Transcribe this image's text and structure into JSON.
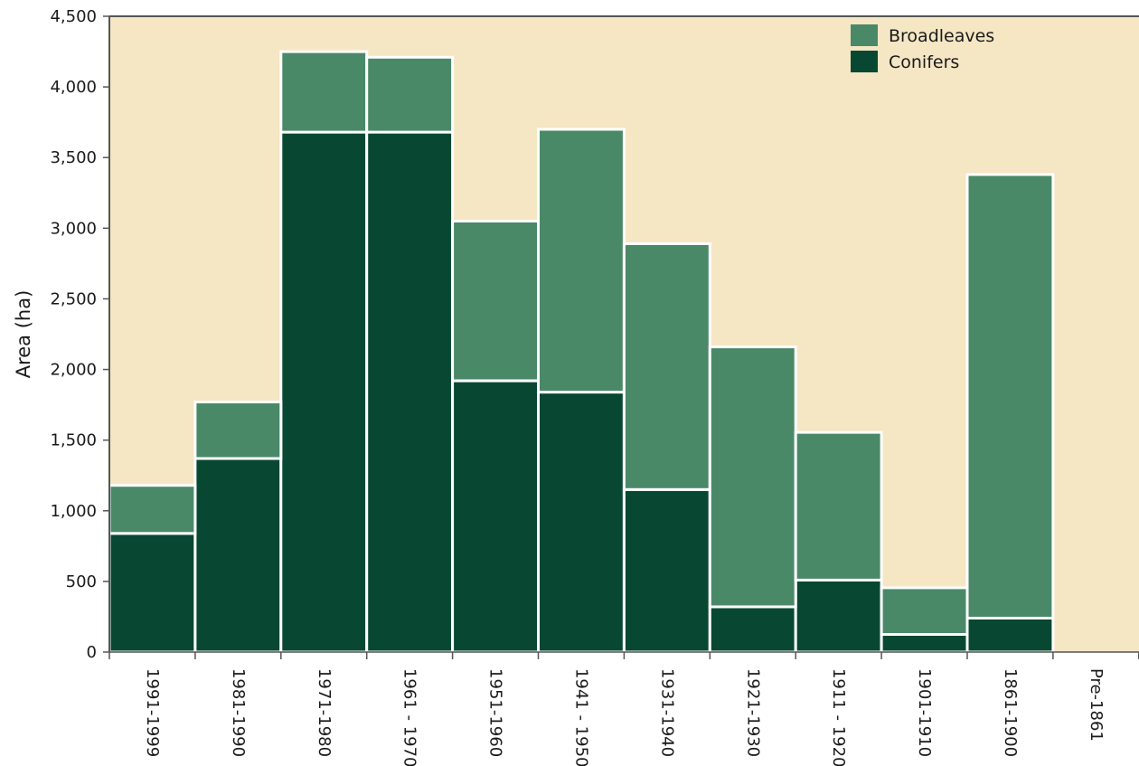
{
  "colors": {
    "plot_background": "#f5e6c4",
    "conifers": "#084832",
    "broadleaves": "#4a8968",
    "bar_border": "#ffffff",
    "axis": "#555555"
  },
  "chart_data": {
    "type": "bar",
    "stacked": true,
    "title": "",
    "xlabel": "",
    "ylabel": "Area (ha)",
    "ylim": [
      0,
      4500
    ],
    "y_ticks": [
      0,
      500,
      1000,
      1500,
      2000,
      2500,
      3000,
      3500,
      4000,
      4500
    ],
    "y_tick_labels": [
      "0",
      "500",
      "1,000",
      "1,500",
      "2,000",
      "2,500",
      "3,000",
      "3,500",
      "4,000",
      "4,500"
    ],
    "legend_position": "top-right",
    "categories": [
      "1991-1999",
      "1981-1990",
      "1971-1980",
      "1961 - 1970",
      "1951-1960",
      "1941 - 1950",
      "1931-1940",
      "1921-1930",
      "1911 - 1920",
      "1901-1910",
      "1861-1900",
      "Pre-1861"
    ],
    "series": [
      {
        "name": "Conifers",
        "color_key": "conifers",
        "values": [
          840,
          1370,
          3680,
          3680,
          1920,
          1840,
          1150,
          320,
          510,
          125,
          240,
          0
        ]
      },
      {
        "name": "Broadleaves",
        "color_key": "broadleaves",
        "values": [
          340,
          400,
          570,
          530,
          1130,
          1860,
          1740,
          1840,
          1045,
          330,
          3140,
          0
        ]
      }
    ],
    "legend": [
      "Broadleaves",
      "Conifers"
    ]
  }
}
